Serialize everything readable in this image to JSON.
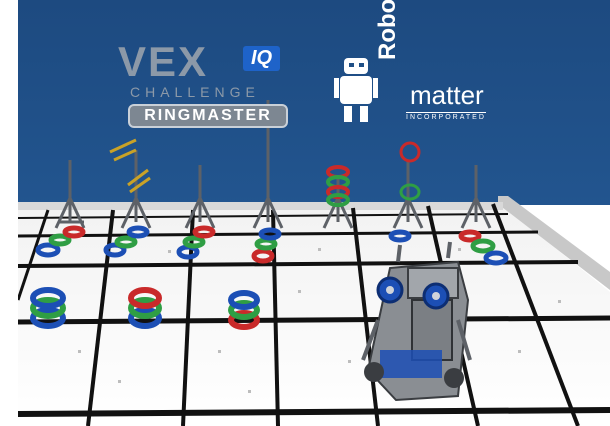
{
  "logos": {
    "vex_letters": "VEX",
    "iq_badge": "IQ",
    "challenge": "CHALLENGE",
    "game_name": "RINGMASTER",
    "robo": "Robo",
    "matter": "matter",
    "incorporated": "INCORPORATED"
  },
  "colors": {
    "wall": "#1f4f86",
    "wall_top": "#264f80",
    "floor": "#ffffff",
    "grid_line": "#111111",
    "ring_red": "#c92a2a",
    "ring_green": "#2f9e44",
    "ring_blue": "#1c4fb5",
    "post": "#6b6f75",
    "lift": "#c9a227",
    "robot": "#8a8e93"
  },
  "icons": [
    "robot-mascot-icon",
    "vex-logo-icon"
  ]
}
